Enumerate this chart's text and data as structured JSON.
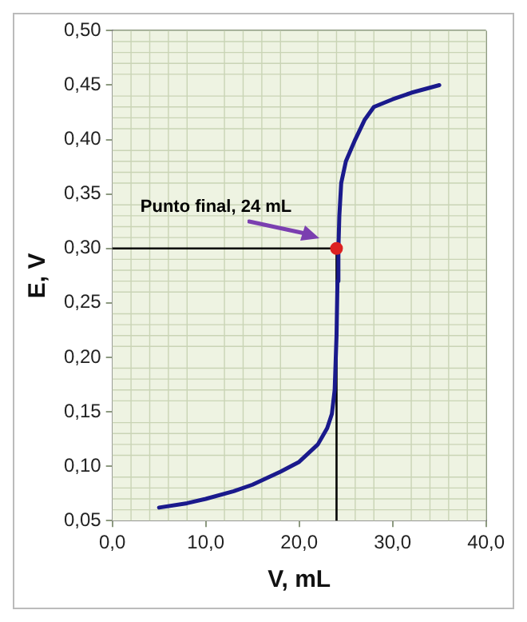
{
  "chart_data": {
    "type": "line",
    "xlabel": "V, mL",
    "ylabel": "E, V",
    "xlim": [
      0,
      40
    ],
    "xticks": [
      {
        "value": 0,
        "label": "0,0"
      },
      {
        "value": 10,
        "label": "10,0"
      },
      {
        "value": 20,
        "label": "20,0"
      },
      {
        "value": 30,
        "label": "30,0"
      },
      {
        "value": 40,
        "label": "40,0"
      }
    ],
    "ylim": [
      0.05,
      0.5
    ],
    "yticks": [
      {
        "value": 0.05,
        "label": "0,05"
      },
      {
        "value": 0.1,
        "label": "0,10"
      },
      {
        "value": 0.15,
        "label": "0,15"
      },
      {
        "value": 0.2,
        "label": "0,20"
      },
      {
        "value": 0.25,
        "label": "0,25"
      },
      {
        "value": 0.3,
        "label": "0,30"
      },
      {
        "value": 0.35,
        "label": "0,35"
      },
      {
        "value": 0.4,
        "label": "0,40"
      },
      {
        "value": 0.45,
        "label": "0,45"
      },
      {
        "value": 0.5,
        "label": "0,50"
      }
    ],
    "grid": true,
    "legend": false,
    "marker": "none",
    "line_style": "solid",
    "series": [
      {
        "type": "line",
        "color": "#1a1a8c",
        "x": [
          5,
          8,
          10,
          13,
          15,
          18,
          20,
          22,
          23,
          23.5,
          23.8,
          24,
          24.1,
          24.2,
          24.3,
          24.5,
          25,
          26,
          27,
          28,
          30,
          32,
          35
        ],
        "values": [
          0.062,
          0.066,
          0.07,
          0.077,
          0.083,
          0.095,
          0.104,
          0.12,
          0.135,
          0.148,
          0.17,
          0.22,
          0.27,
          0.3,
          0.33,
          0.36,
          0.38,
          0.4,
          0.418,
          0.43,
          0.437,
          0.443,
          0.45
        ]
      },
      {
        "type": "scatter",
        "color": "#dd2222",
        "x": [
          24
        ],
        "values": [
          0.3
        ],
        "marker": "circle"
      }
    ],
    "ref_lines": [
      {
        "axis": "y",
        "value": 0.3,
        "color": "#000000"
      },
      {
        "axis": "x",
        "value": 24,
        "color": "#000000"
      }
    ],
    "annotations": [
      "Punto final, 24 mL"
    ]
  }
}
